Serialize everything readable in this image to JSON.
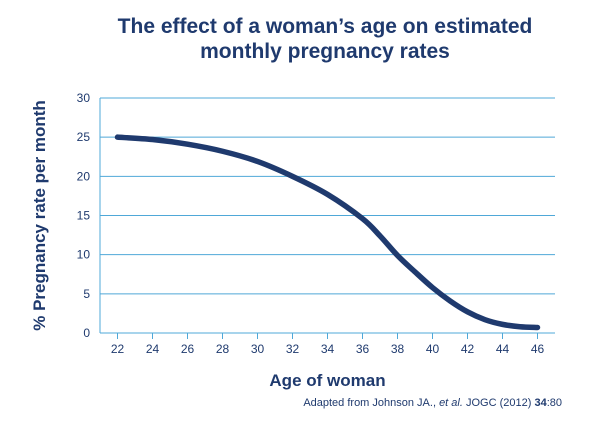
{
  "chart_data": {
    "type": "line",
    "title_line1": "The effect of a woman’s age on estimated",
    "title_line2": "monthly pregnancy rates",
    "xlabel": "Age of woman",
    "ylabel": "% Pregnancy rate per month",
    "xlim": [
      21,
      47
    ],
    "ylim": [
      0,
      30
    ],
    "x_ticks": [
      22,
      24,
      26,
      28,
      30,
      32,
      34,
      36,
      38,
      40,
      42,
      44,
      46
    ],
    "y_ticks": [
      0,
      5,
      10,
      15,
      20,
      25,
      30
    ],
    "grid": "horizontal",
    "series": [
      {
        "color": "#1f3a6e",
        "x": [
          22,
          24,
          26,
          28,
          30,
          32,
          34,
          36,
          37,
          38,
          39,
          40,
          41,
          42,
          43,
          44,
          45,
          46
        ],
        "y": [
          25,
          24.7,
          24.1,
          23.2,
          21.9,
          20.0,
          17.7,
          14.6,
          12.4,
          9.9,
          7.8,
          5.8,
          4.1,
          2.7,
          1.7,
          1.1,
          0.8,
          0.7
        ]
      }
    ]
  },
  "source": {
    "prefix": "Adapted from Johnson JA., ",
    "etal": "et al.",
    "journal": " JOGC (2012) ",
    "volume": "34",
    "pages": ":80"
  },
  "colors": {
    "accent": "#1f3a6e",
    "grid": "#4fa8d8",
    "text": "#1f3a6e"
  }
}
